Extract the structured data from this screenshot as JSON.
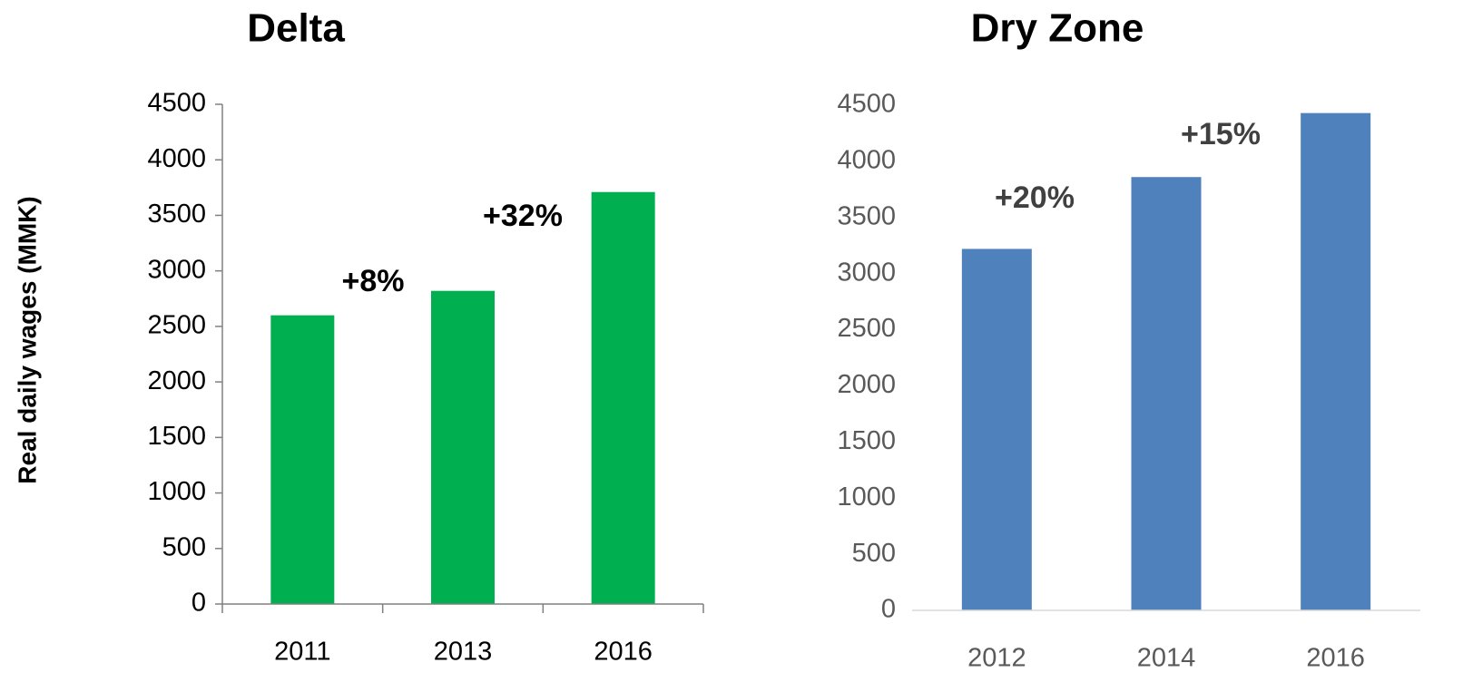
{
  "chart_data": [
    {
      "type": "bar",
      "title": "Delta",
      "y_label": "Real daily wages (MMK)",
      "categories": [
        "2011",
        "2013",
        "2016"
      ],
      "values": [
        2600,
        2820,
        3710
      ],
      "color": "#00b050",
      "ylim": [
        0,
        4500
      ],
      "yticks": [
        0,
        500,
        1000,
        1500,
        2000,
        2500,
        3000,
        3500,
        4000,
        4500
      ],
      "annotations": [
        "+8%",
        "+32%"
      ]
    },
    {
      "type": "bar",
      "title": "Dry Zone",
      "categories": [
        "2012",
        "2014",
        "2016"
      ],
      "values": [
        3220,
        3860,
        4430
      ],
      "color": "#4f81bd",
      "ylim": [
        0,
        4500
      ],
      "yticks": [
        0,
        500,
        1000,
        1500,
        2000,
        2500,
        3000,
        3500,
        4000,
        4500
      ],
      "annotations": [
        "+20%",
        "+15%"
      ]
    }
  ]
}
